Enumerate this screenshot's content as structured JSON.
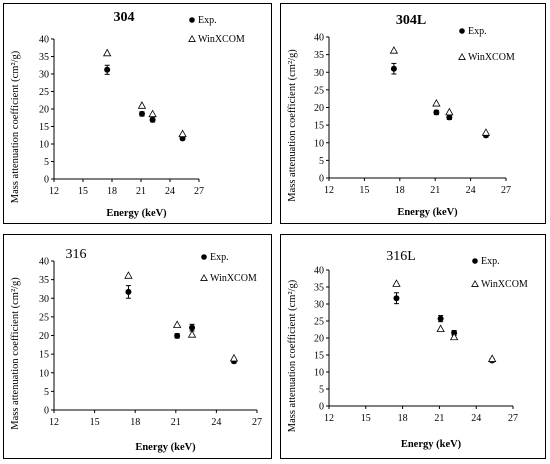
{
  "chart_data": [
    {
      "type": "scatter",
      "title": "304",
      "xlabel": "Energy (keV)",
      "ylabel": "Mass attenuation coefficient (cm²/g)",
      "xlim": [
        12,
        27
      ],
      "ylim": [
        0,
        40
      ],
      "xticks": [
        "12",
        "15",
        "18",
        "21",
        "24",
        "27"
      ],
      "yticks": [
        "0",
        "5",
        "10",
        "15",
        "20",
        "25",
        "30",
        "35",
        "40"
      ],
      "legend_position": "top-right",
      "series": [
        {
          "name": "Exp.",
          "marker": "filled-circle",
          "x": [
            17.5,
            21.1,
            22.2,
            25.3
          ],
          "y": [
            31.2,
            18.6,
            16.9,
            11.6
          ],
          "err": [
            1.3,
            0.6,
            0.6,
            0.5
          ]
        },
        {
          "name": "WinXCOM",
          "marker": "open-triangle",
          "x": [
            17.5,
            21.1,
            22.2,
            25.3
          ],
          "y": [
            36.0,
            21.0,
            18.6,
            12.9
          ]
        }
      ]
    },
    {
      "type": "scatter",
      "title": "304L",
      "xlabel": "Energy (keV)",
      "ylabel": "Mass attenuation coefficient (cm²/g)",
      "xlim": [
        12,
        27
      ],
      "ylim": [
        0,
        40
      ],
      "xticks": [
        "12",
        "15",
        "18",
        "21",
        "24",
        "27"
      ],
      "yticks": [
        "0",
        "5",
        "10",
        "15",
        "20",
        "25",
        "30",
        "35",
        "40"
      ],
      "legend_position": "top-right",
      "series": [
        {
          "name": "Exp.",
          "marker": "filled-circle",
          "x": [
            17.5,
            21.1,
            22.2,
            25.3
          ],
          "y": [
            31.0,
            18.6,
            17.2,
            12.1
          ],
          "err": [
            1.5,
            0.6,
            0.6,
            0.5
          ]
        },
        {
          "name": "WinXCOM",
          "marker": "open-triangle",
          "x": [
            17.5,
            21.1,
            22.2,
            25.3
          ],
          "y": [
            36.2,
            21.2,
            18.7,
            12.9
          ]
        }
      ]
    },
    {
      "type": "scatter",
      "title": "316",
      "xlabel": "Energy (keV)",
      "ylabel": "Mass attenuation coefficient (cm²/g)",
      "xlim": [
        12,
        27
      ],
      "ylim": [
        0,
        40
      ],
      "xticks": [
        "12",
        "15",
        "18",
        "21",
        "24",
        "27"
      ],
      "yticks": [
        "0",
        "5",
        "10",
        "15",
        "20",
        "25",
        "30",
        "35",
        "40"
      ],
      "legend_position": "top-right",
      "series": [
        {
          "name": "Exp.",
          "marker": "filled-circle",
          "x": [
            17.5,
            21.1,
            22.2,
            25.3
          ],
          "y": [
            31.7,
            19.9,
            22.1,
            13.1
          ],
          "err": [
            1.7,
            0.6,
            0.9,
            0.5
          ]
        },
        {
          "name": "WinXCOM",
          "marker": "open-triangle",
          "x": [
            17.5,
            21.1,
            22.2,
            25.3
          ],
          "y": [
            36.1,
            22.9,
            20.3,
            13.9
          ]
        }
      ]
    },
    {
      "type": "scatter",
      "title": "316L",
      "xlabel": "Energy (keV)",
      "ylabel": "Mass attenuation coefficient (cm²/g)",
      "xlim": [
        12,
        27
      ],
      "ylim": [
        0,
        40
      ],
      "xticks": [
        "12",
        "15",
        "18",
        "21",
        "24",
        "27"
      ],
      "yticks": [
        "0",
        "5",
        "10",
        "15",
        "20",
        "25",
        "30",
        "35",
        "40"
      ],
      "legend_position": "top-right",
      "series": [
        {
          "name": "Exp.",
          "marker": "filled-circle",
          "x": [
            17.5,
            21.1,
            22.2,
            25.3
          ],
          "y": [
            31.7,
            25.7,
            21.5,
            13.4
          ],
          "err": [
            1.6,
            0.9,
            0.7,
            0.5
          ]
        },
        {
          "name": "WinXCOM",
          "marker": "open-triangle",
          "x": [
            17.5,
            21.1,
            22.2,
            25.3
          ],
          "y": [
            36.0,
            22.7,
            20.3,
            13.9
          ]
        }
      ]
    }
  ]
}
